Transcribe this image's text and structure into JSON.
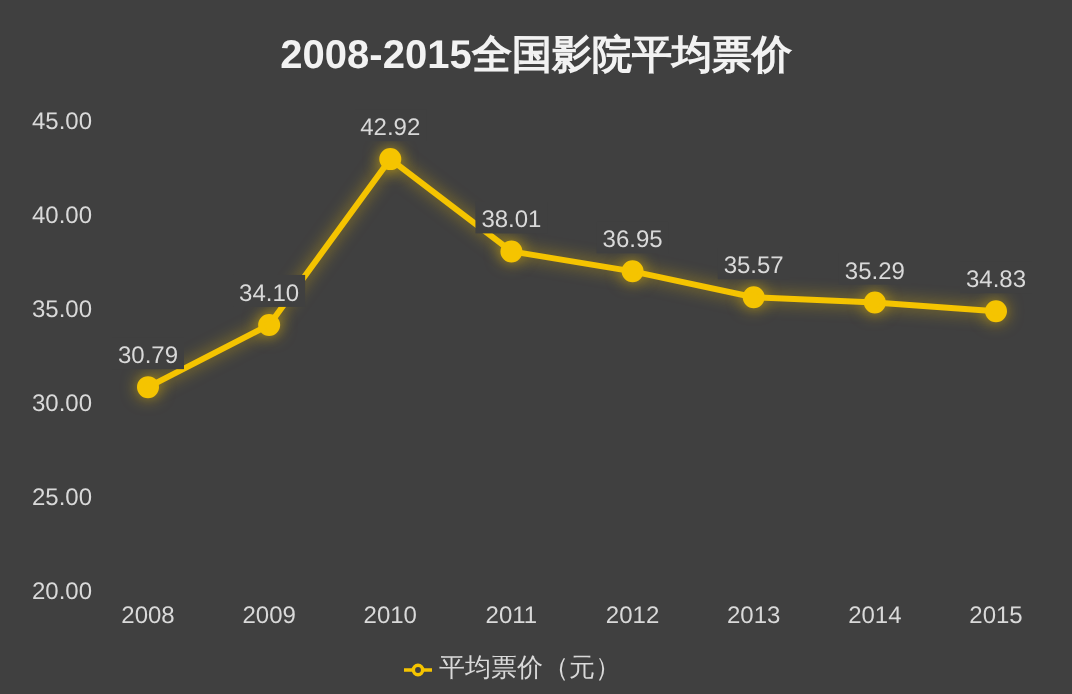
{
  "chart_data": {
    "type": "line",
    "title": "2008-2015全国影院平均票价",
    "categories": [
      "2008",
      "2009",
      "2010",
      "2011",
      "2012",
      "2013",
      "2014",
      "2015"
    ],
    "series": [
      {
        "name": "平均票价（元）",
        "color": "#f5c400",
        "values": [
          30.79,
          34.1,
          42.92,
          38.01,
          36.95,
          35.57,
          35.29,
          34.83
        ],
        "value_labels": [
          "30.79",
          "34.10",
          "42.92",
          "38.01",
          "36.95",
          "35.57",
          "35.29",
          "34.83"
        ]
      }
    ],
    "ylim": [
      20,
      45
    ],
    "yticks": [
      {
        "value": 20,
        "label": "20.00"
      },
      {
        "value": 25,
        "label": "25.00"
      },
      {
        "value": 30,
        "label": "30.00"
      },
      {
        "value": 35,
        "label": "35.00"
      },
      {
        "value": 40,
        "label": "40.00"
      },
      {
        "value": 45,
        "label": "45.00"
      }
    ],
    "grid": false,
    "legend": "bottom",
    "marker": "circle",
    "line_style": "solid"
  }
}
